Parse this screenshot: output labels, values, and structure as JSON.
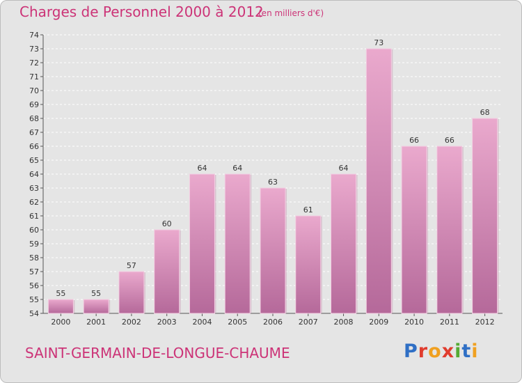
{
  "header": {
    "title": "Charges de Personnel 2000 à 2012",
    "subtitle": "(en milliers d'€)"
  },
  "footer": {
    "commune": "SAINT-GERMAIN-DE-LONGUE-CHAUME",
    "logo": "Proxiti"
  },
  "colors": {
    "background": "#e5e5e5",
    "title": "#cc3377",
    "bar_light": "#e8a8cc",
    "bar_dark": "#b8699a"
  },
  "chart_data": {
    "type": "bar",
    "title": "Charges de Personnel 2000 à 2012",
    "subtitle": "(en milliers d'€)",
    "categories": [
      "2000",
      "2001",
      "2002",
      "2003",
      "2004",
      "2005",
      "2006",
      "2007",
      "2008",
      "2009",
      "2010",
      "2011",
      "2012"
    ],
    "values": [
      55,
      55,
      57,
      60,
      64,
      64,
      63,
      61,
      64,
      73,
      66,
      66,
      68
    ],
    "ylim": [
      54,
      74
    ],
    "yticks": [
      54,
      55,
      56,
      57,
      58,
      59,
      60,
      61,
      62,
      63,
      64,
      65,
      66,
      67,
      68,
      69,
      70,
      71,
      72,
      73,
      74
    ],
    "grid": true,
    "legend": "none"
  }
}
